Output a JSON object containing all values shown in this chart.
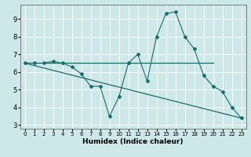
{
  "xlabel": "Humidex (Indice chaleur)",
  "xlim": [
    -0.5,
    23.5
  ],
  "ylim": [
    2.8,
    9.8
  ],
  "xticks": [
    0,
    1,
    2,
    3,
    4,
    5,
    6,
    7,
    8,
    9,
    10,
    11,
    12,
    13,
    14,
    15,
    16,
    17,
    18,
    19,
    20,
    21,
    22,
    23
  ],
  "yticks": [
    3,
    4,
    5,
    6,
    7,
    8,
    9
  ],
  "bg_color": "#cce8e8",
  "line_color": "#1a6b6b",
  "line1_x": [
    0,
    1,
    2,
    3,
    4,
    5,
    6,
    7,
    8,
    9,
    10,
    11,
    12,
    13,
    14,
    15,
    16,
    17,
    18,
    19,
    20,
    21,
    22,
    23
  ],
  "line1_y": [
    6.5,
    6.5,
    6.5,
    6.6,
    6.5,
    6.3,
    5.9,
    5.2,
    5.2,
    3.5,
    4.6,
    6.5,
    7.0,
    5.5,
    8.0,
    9.3,
    9.4,
    8.0,
    7.3,
    5.8,
    5.2,
    4.9,
    4.0,
    3.4
  ],
  "line2_x": [
    0,
    20
  ],
  "line2_y": [
    6.5,
    6.5
  ],
  "line3_x": [
    0,
    23
  ],
  "line3_y": [
    6.5,
    3.4
  ],
  "xtick_fontsize": 5.0,
  "ytick_fontsize": 6.0,
  "xlabel_fontsize": 6.5
}
